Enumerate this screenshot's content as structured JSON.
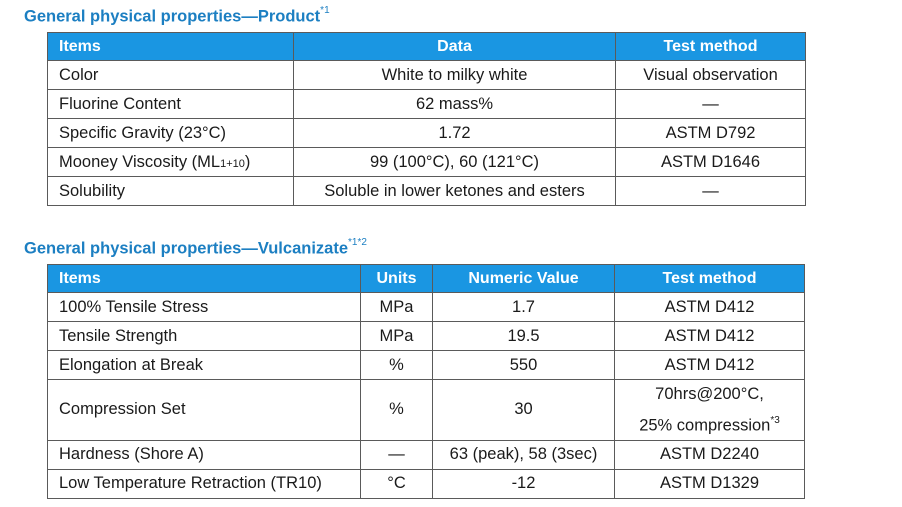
{
  "product": {
    "title": "General physical properties—Product",
    "title_note": "*1",
    "headers": {
      "items": "Items",
      "data": "Data",
      "test_method": "Test method"
    },
    "rows": [
      {
        "item": "Color",
        "data": "White to milky white",
        "test": "Visual observation"
      },
      {
        "item": "Fluorine Content",
        "data": "62 mass%",
        "test": "—"
      },
      {
        "item": "Specific Gravity (23°C)",
        "data": "1.72",
        "test": "ASTM D792"
      },
      {
        "item_main": "Mooney Viscosity (ML",
        "item_sub": "1+10",
        "item_end": ")",
        "data": "99 (100°C), 60 (121°C)",
        "test": "ASTM D1646"
      },
      {
        "item": "Solubility",
        "data": "Soluble in lower ketones and esters",
        "test": "—"
      }
    ]
  },
  "vulcanizate": {
    "title": "General physical properties—Vulcanizate",
    "title_note": "*1*2",
    "headers": {
      "items": "Items",
      "units": "Units",
      "value": "Numeric Value",
      "test_method": "Test method"
    },
    "rows": [
      {
        "item": "100% Tensile Stress",
        "units": "MPa",
        "value": "1.7",
        "test": "ASTM D412"
      },
      {
        "item": "Tensile Strength",
        "units": "MPa",
        "value": "19.5",
        "test": "ASTM D412"
      },
      {
        "item": "Elongation at Break",
        "units": "%",
        "value": "550",
        "test": "ASTM D412"
      },
      {
        "item": "Compression Set",
        "units": "%",
        "value": "30",
        "test_line1": "70hrs@200°C,",
        "test_line2": "25% compression",
        "test_note": "*3"
      },
      {
        "item": "Hardness (Shore A)",
        "units": "—",
        "value": "63 (peak), 58 (3sec)",
        "test": "ASTM D2240"
      },
      {
        "item": "Low Temperature Retraction (TR10)",
        "units": "°C",
        "value": "-12",
        "test": "ASTM D1329"
      }
    ]
  }
}
